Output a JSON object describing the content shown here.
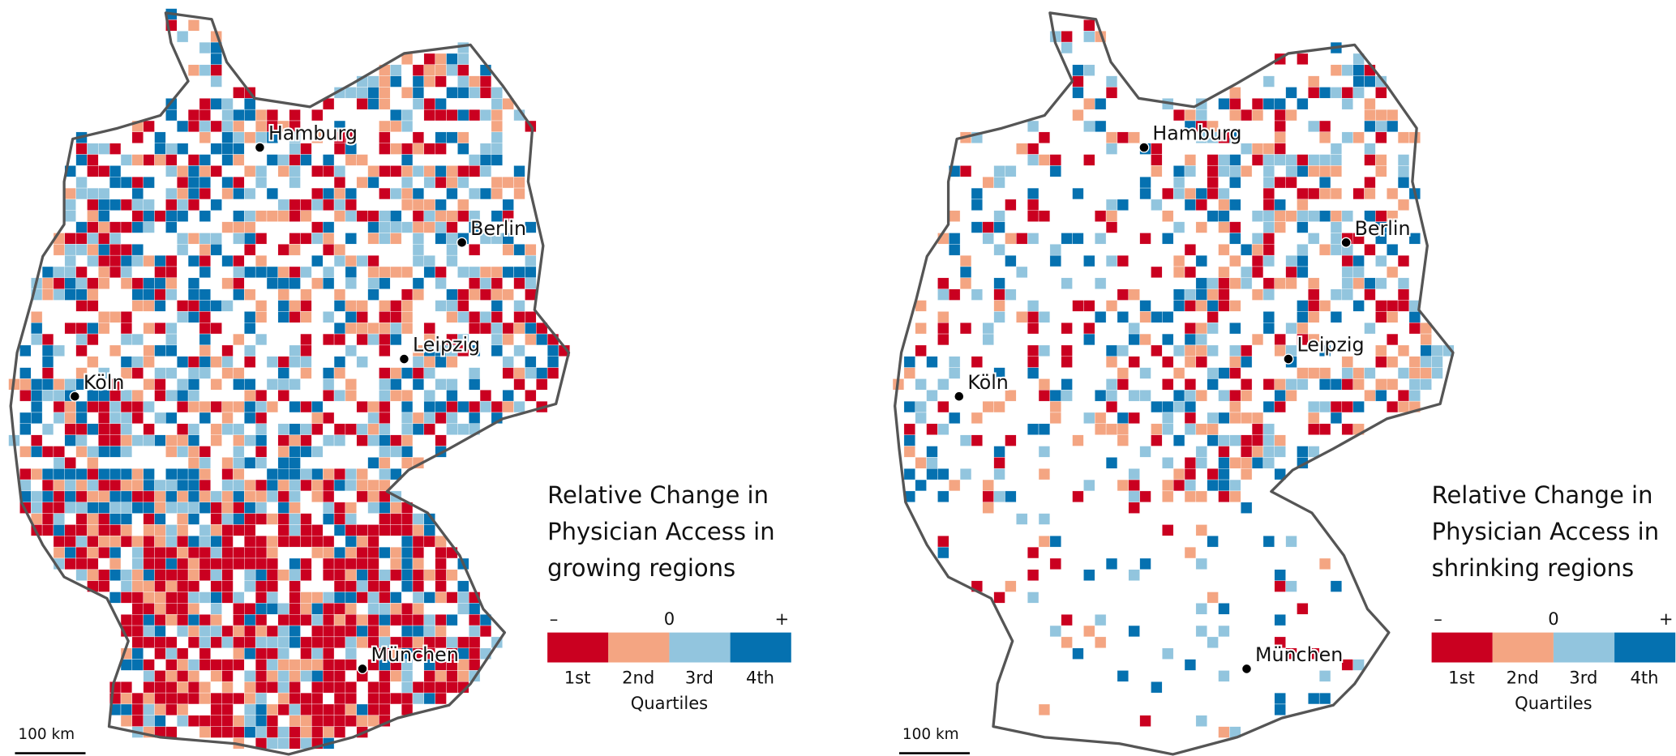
{
  "maps": [
    {
      "cities": [
        "Hamburg",
        "Berlin",
        "Leipzig",
        "Köln",
        "München"
      ],
      "scale_bar": "100 km",
      "legend": {
        "title": [
          "Relative Change in",
          "Physician Access in",
          "growing regions"
        ],
        "scale": [
          "–",
          "0",
          "+"
        ],
        "classes": [
          "1st",
          "2nd",
          "3rd",
          "4th"
        ],
        "colors": [
          "#ca0020",
          "#f4a582",
          "#92c5de",
          "#0571b0"
        ],
        "caption": "Quartiles"
      }
    },
    {
      "cities": [
        "Hamburg",
        "Berlin",
        "Leipzig",
        "Köln",
        "München"
      ],
      "scale_bar": "100 km",
      "legend": {
        "title": [
          "Relative Change in",
          "Physician Access in",
          "shrinking regions"
        ],
        "scale": [
          "–",
          "0",
          "+"
        ],
        "classes": [
          "1st",
          "2nd",
          "3rd",
          "4th"
        ],
        "colors": [
          "#ca0020",
          "#f4a582",
          "#92c5de",
          "#0571b0"
        ],
        "caption": "Quartiles"
      }
    }
  ]
}
